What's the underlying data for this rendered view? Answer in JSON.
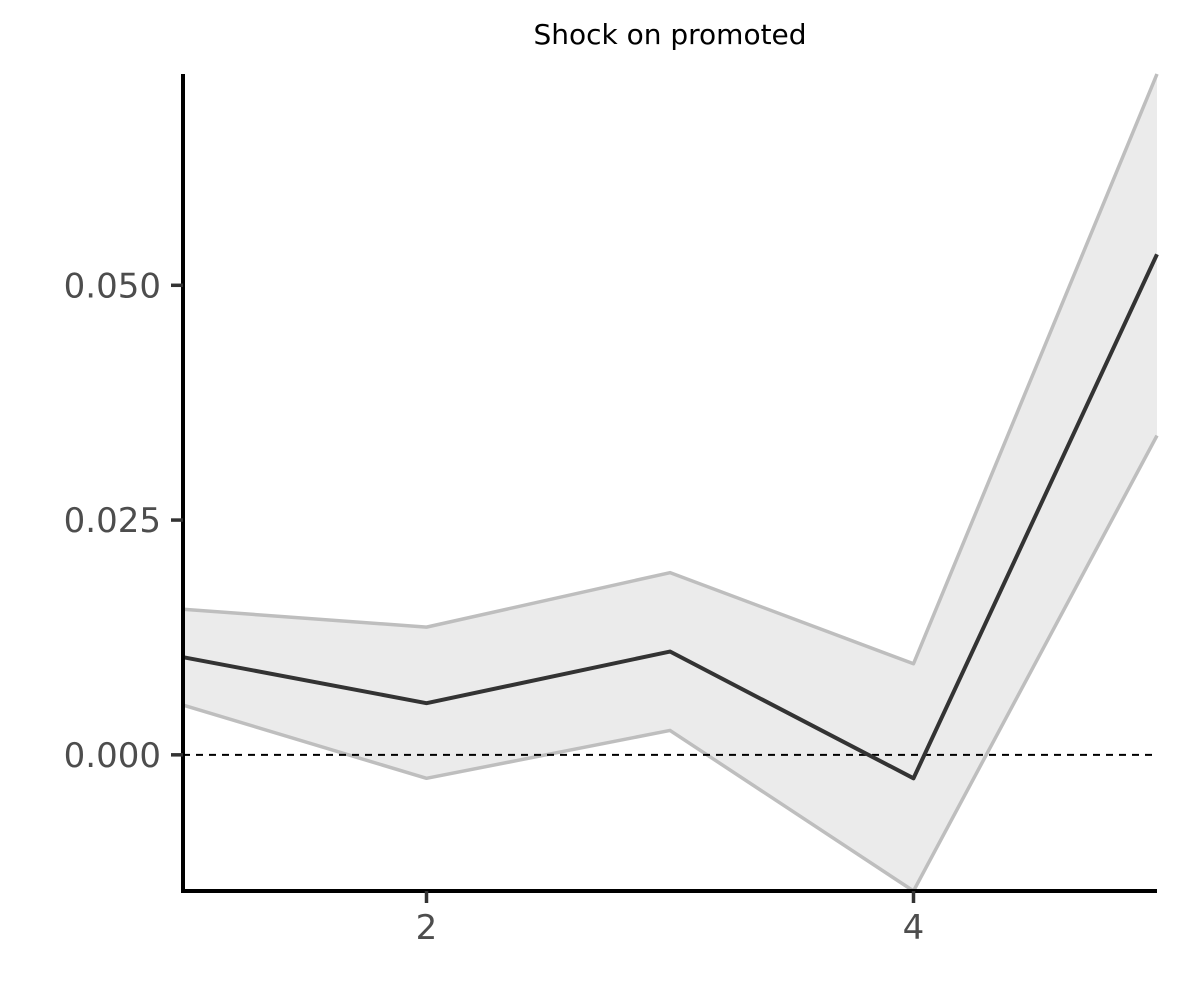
{
  "chart_data": {
    "type": "line",
    "title": "Shock on promoted",
    "xlabel": "",
    "ylabel": "",
    "x": [
      1,
      2,
      3,
      4,
      5
    ],
    "xlim": [
      1,
      5
    ],
    "ylim": [
      -0.0145,
      0.0725
    ],
    "x_ticks": [
      2,
      4
    ],
    "x_tick_labels": [
      "2",
      "4"
    ],
    "y_ticks": [
      0.0,
      0.025,
      0.05
    ],
    "y_tick_labels": [
      "0.000",
      "0.025",
      "0.050"
    ],
    "series": [
      {
        "values": [
          0.0104,
          0.0055,
          0.011,
          -0.0025,
          0.0533
        ]
      }
    ],
    "confidence_band": {
      "upper": [
        0.0155,
        0.0136,
        0.0194,
        0.0097,
        0.0725
      ],
      "lower": [
        0.0053,
        -0.0025,
        0.0026,
        -0.0145,
        0.034
      ]
    },
    "reference_line": {
      "y": 0.0,
      "style": "dashed"
    },
    "grid": false,
    "legend": "none",
    "colors": {
      "line": "#333333",
      "band_fill": "#ebebeb",
      "band_edge": "#bebebe",
      "axis": "#000000",
      "reference": "#000000"
    }
  }
}
